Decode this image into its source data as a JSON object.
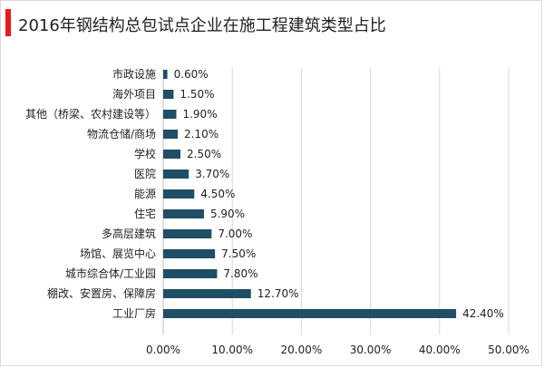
{
  "title": "2016年钢结构总包试点企业在施工程建筑类型占比",
  "colors": {
    "accent": "#e8191f",
    "bar": "#1f4e66",
    "grid": "#d9d9d9"
  },
  "chart_data": {
    "type": "bar",
    "orientation": "horizontal",
    "title": "2016年钢结构总包试点企业在施工程建筑类型占比",
    "categories": [
      "市政设施",
      "海外项目",
      "其他（桥梁、农村建设等）",
      "物流仓储/商场",
      "学校",
      "医院",
      "能源",
      "住宅",
      "多高层建筑",
      "场馆、展览中心",
      "城市综合体/工业园",
      "棚改、安置房、保障房",
      "工业厂房"
    ],
    "values": [
      0.6,
      1.5,
      1.9,
      2.1,
      2.5,
      3.7,
      4.5,
      5.9,
      7.0,
      7.5,
      7.8,
      12.7,
      42.4
    ],
    "value_labels": [
      "0.60%",
      "1.50%",
      "1.90%",
      "2.10%",
      "2.50%",
      "3.70%",
      "4.50%",
      "5.90%",
      "7.00%",
      "7.50%",
      "7.80%",
      "12.70%",
      "42.40%"
    ],
    "xlim": [
      0,
      50
    ],
    "x_ticks": [
      0,
      10,
      20,
      30,
      40,
      50
    ],
    "x_tick_labels": [
      "0.00%",
      "10.00%",
      "20.00%",
      "30.00%",
      "40.00%",
      "50.00%"
    ],
    "grid": "vertical",
    "legend": "none"
  }
}
